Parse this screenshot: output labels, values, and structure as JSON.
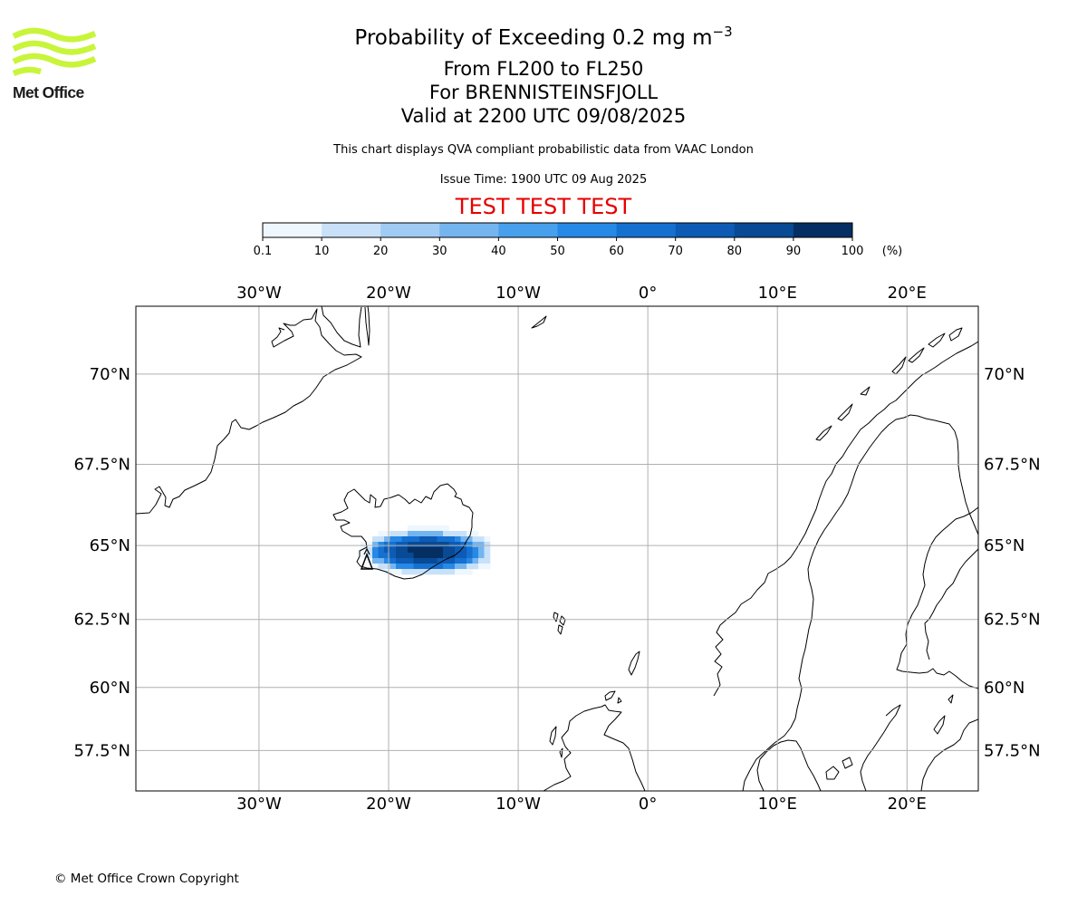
{
  "logo": {
    "text": "Met Office",
    "color": "#c8f53a"
  },
  "title": {
    "main": "Probability of Exceeding 0.2 mg m",
    "main_exponent": "−3",
    "level_range": "From FL200 to FL250",
    "volcano": "For BRENNISTEINSFJOLL",
    "valid_time": "Valid at 2200 UTC 09/08/2025",
    "description": "This chart displays QVA compliant probabilistic data from VAAC London",
    "issue_time": "Issue Time: 1900 UTC 09 Aug 2025",
    "test_banner": "TEST TEST TEST"
  },
  "colorbar": {
    "ticks": [
      "0.1",
      "10",
      "20",
      "30",
      "40",
      "50",
      "60",
      "70",
      "80",
      "90",
      "100"
    ],
    "unit": "(%)",
    "colors": [
      "#eef6fe",
      "#c8e1f8",
      "#a0cbf4",
      "#74b5f0",
      "#48a0ec",
      "#2689e6",
      "#1570d0",
      "#0d5bb4",
      "#084a94",
      "#052f63"
    ]
  },
  "map": {
    "longitude_labels": [
      "30°W",
      "20°W",
      "10°W",
      "0°",
      "10°E",
      "20°E"
    ],
    "latitude_labels": [
      "70°N",
      "67.5°N",
      "65°N",
      "62.5°N",
      "60°N",
      "57.5°N"
    ],
    "longitudes": [
      -30,
      -20,
      -10,
      0,
      10,
      20
    ],
    "latitudes": [
      70,
      67.5,
      65,
      62.5,
      60,
      57.5
    ],
    "extent": {
      "lon_min": -39.5,
      "lon_max": 25.5,
      "lat_min": 55.8,
      "lat_max": 71.7
    },
    "gridline_color": "#b0b0b0",
    "volcano_lon": -21.7,
    "volcano_lat": 64.0
  },
  "footer": {
    "copyright": "© Met Office Crown Copyright"
  }
}
